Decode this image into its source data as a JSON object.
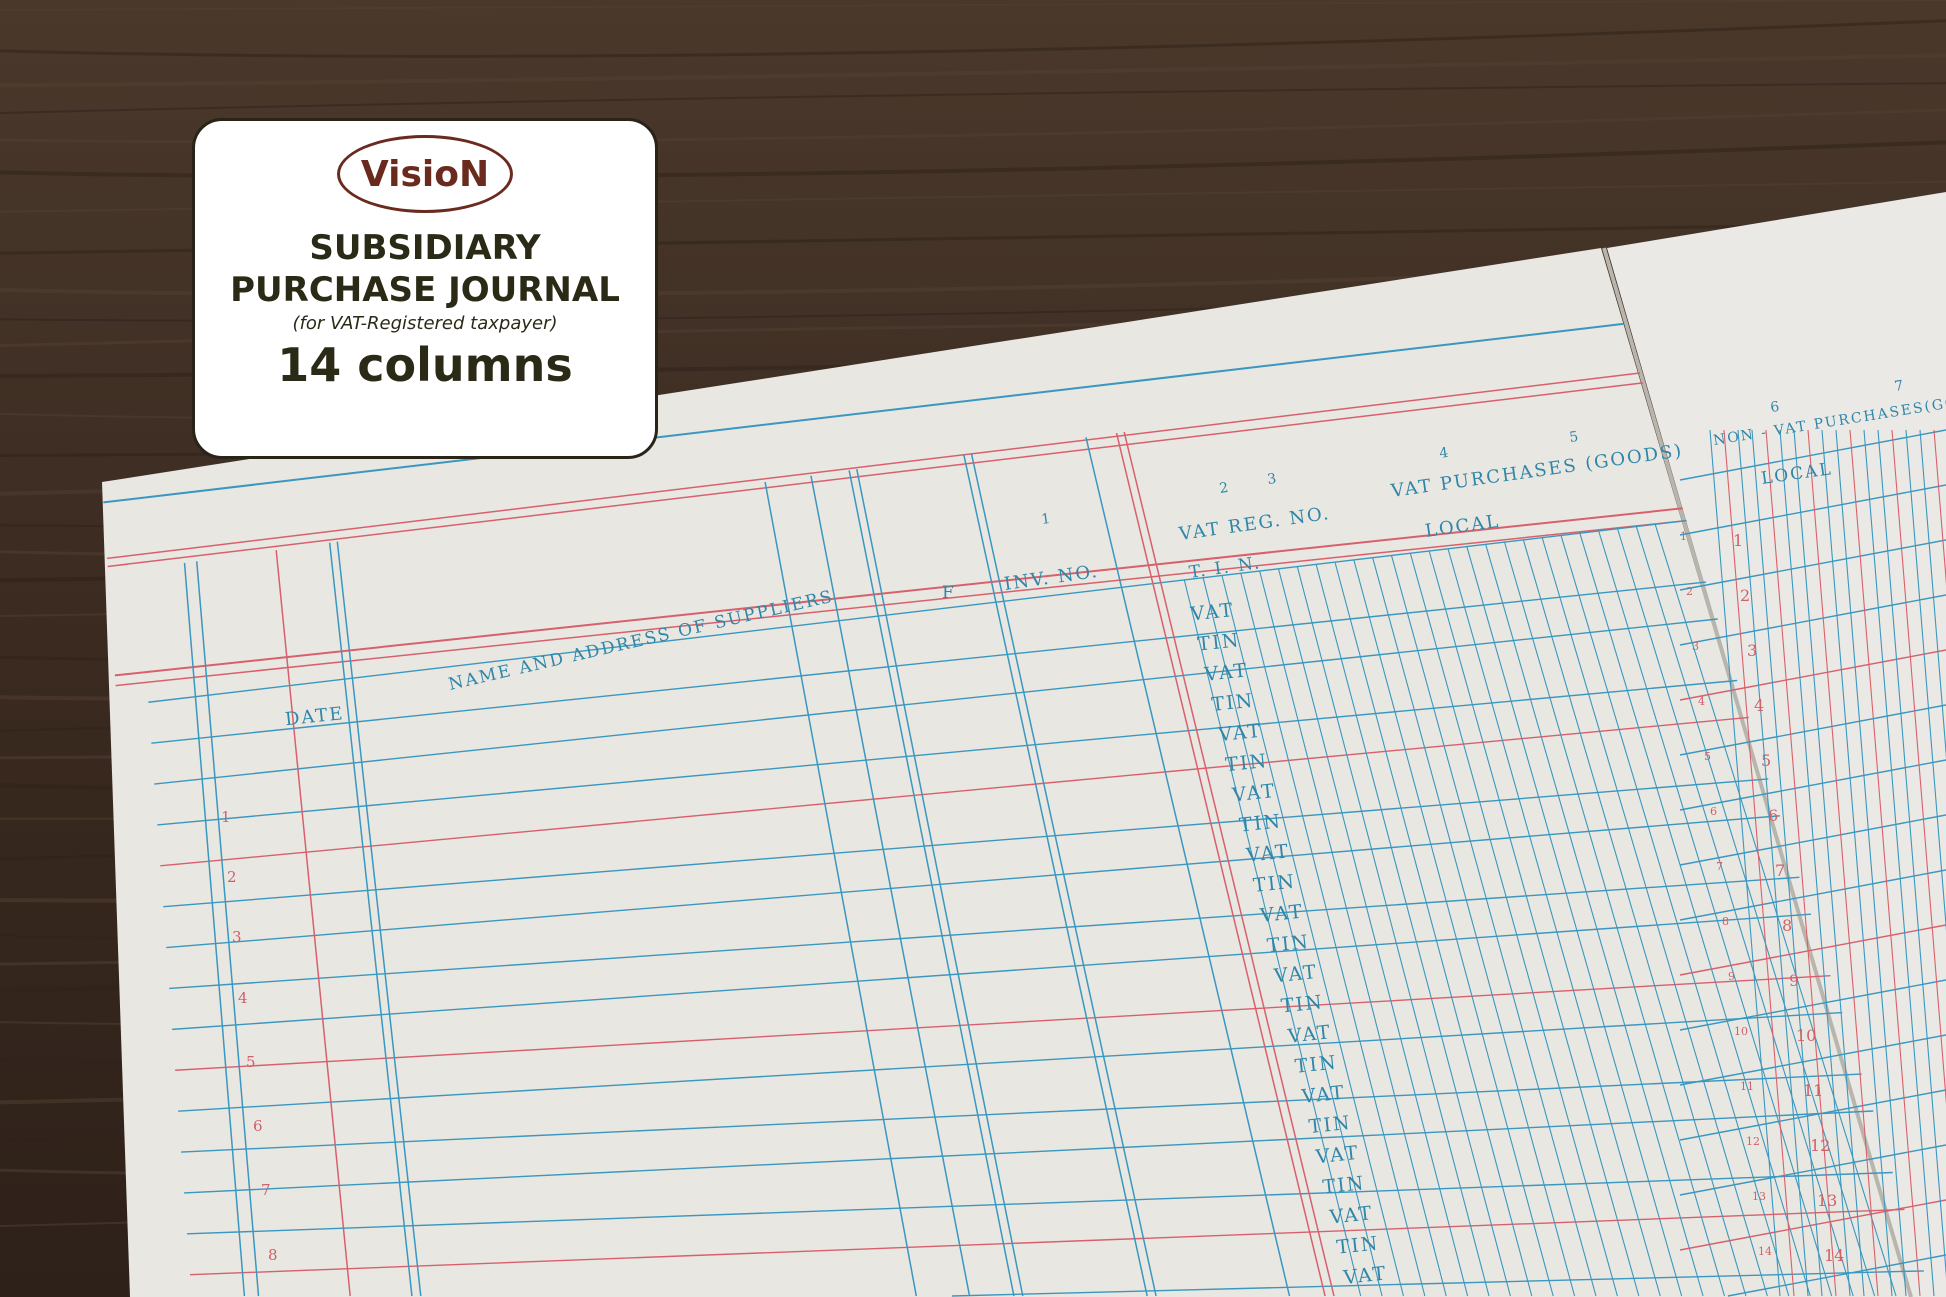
{
  "label": {
    "brand": "VisioN",
    "title_line1": "SUBSIDIARY",
    "title_line2": "PURCHASE JOURNAL",
    "subtitle": "(for VAT-Registered taxpayer)",
    "columns": "14 columns"
  },
  "journal": {
    "headers": {
      "date": "DATE",
      "name": "NAME AND ADDRESS OF SUPPLIERS",
      "folio": "F",
      "invoice": "INV. NO.",
      "vat_reg": "VAT REG. NO.",
      "tin": "T.   I.   N.",
      "vat_purchases": "VAT PURCHASES (GOODS)",
      "local_left": "LOCAL",
      "non_vat_purchases": "NON - VAT PURCHASES(GOOD",
      "local_right": "LOCAL"
    },
    "column_numbers": [
      "1",
      "2",
      "3",
      "4",
      "5",
      "6",
      "7"
    ],
    "row_numbers_left": [
      "1",
      "2",
      "3",
      "4",
      "5",
      "6",
      "7",
      "8"
    ],
    "row_numbers_right": [
      "1",
      "2",
      "3",
      "4",
      "5",
      "6",
      "7",
      "8",
      "9",
      "10",
      "11",
      "12",
      "13",
      "14"
    ],
    "vat_tin_cells": [
      "VAT",
      "TIN",
      "VAT",
      "TIN",
      "VAT",
      "TIN",
      "VAT",
      "TIN",
      "VAT",
      "TIN",
      "VAT",
      "TIN",
      "VAT",
      "TIN",
      "VAT",
      "TIN",
      "VAT",
      "TIN",
      "VAT",
      "TIN",
      "VAT",
      "TIN",
      "VAT"
    ]
  },
  "colors": {
    "wood": "#3b2c22",
    "paper": "#eceae6",
    "blue_rule": "#3a97bf",
    "red_rule": "#d8606c",
    "label_text": "#2b2a16",
    "brand": "#6a2a1e"
  }
}
